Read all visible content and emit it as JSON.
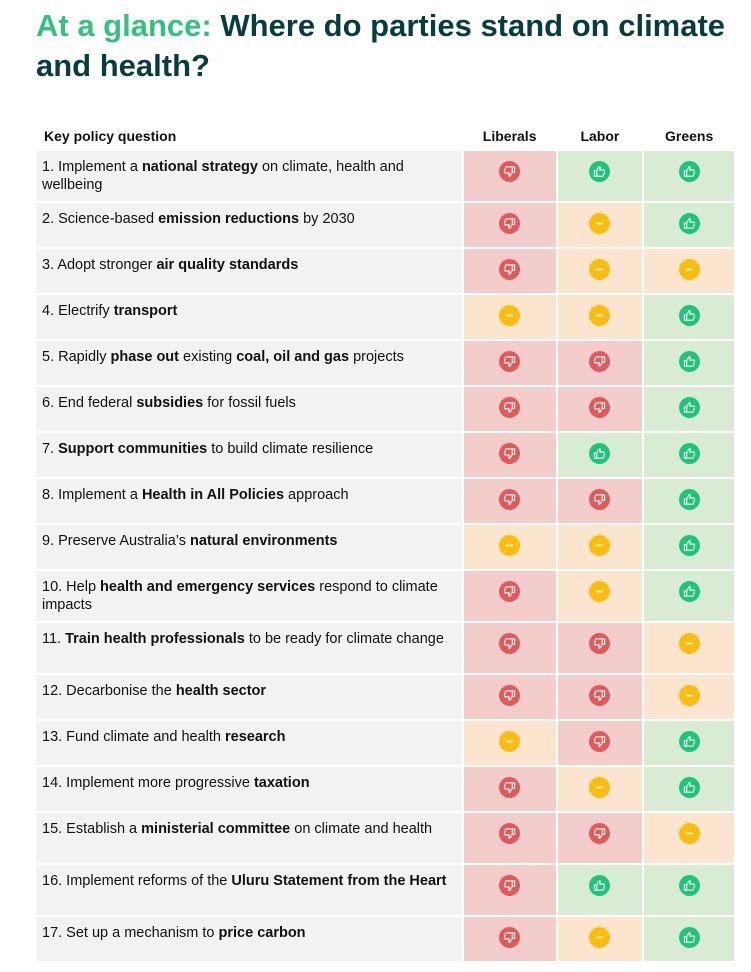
{
  "title": {
    "accent": "At a glance:",
    "main": " Where do parties stand on climate and health?"
  },
  "table": {
    "headers": {
      "question": "Key policy question",
      "parties": [
        "Liberals",
        "Labor",
        "Greens"
      ]
    },
    "legend_colors": {
      "against": "#e05a5a",
      "neutral": "#f8bd0f",
      "for": "#1dc47a"
    },
    "rows": [
      {
        "tall": true,
        "segments": [
          {
            "t": "1. Implement a "
          },
          {
            "t": "national strategy",
            "b": true
          },
          {
            "t": " on climate, health and wellbeing"
          }
        ],
        "positions": [
          "against",
          "for",
          "for"
        ]
      },
      {
        "segments": [
          {
            "t": "2. Science-based "
          },
          {
            "t": "emission reductions",
            "b": true
          },
          {
            "t": " by 2030"
          }
        ],
        "positions": [
          "against",
          "neutral",
          "for"
        ]
      },
      {
        "segments": [
          {
            "t": "3. Adopt stronger "
          },
          {
            "t": "air quality standards",
            "b": true
          }
        ],
        "positions": [
          "against",
          "neutral",
          "neutral"
        ]
      },
      {
        "segments": [
          {
            "t": "4. Electrify "
          },
          {
            "t": "transport",
            "b": true
          }
        ],
        "positions": [
          "neutral",
          "neutral",
          "for"
        ]
      },
      {
        "segments": [
          {
            "t": "5. Rapidly "
          },
          {
            "t": "phase out",
            "b": true
          },
          {
            "t": " existing "
          },
          {
            "t": "coal, oil and gas",
            "b": true
          },
          {
            "t": " projects"
          }
        ],
        "positions": [
          "against",
          "against",
          "for"
        ]
      },
      {
        "segments": [
          {
            "t": "6. End federal "
          },
          {
            "t": "subsidies",
            "b": true
          },
          {
            "t": " for fossil fuels"
          }
        ],
        "positions": [
          "against",
          "against",
          "for"
        ]
      },
      {
        "segments": [
          {
            "t": "7. "
          },
          {
            "t": "Support communities",
            "b": true
          },
          {
            "t": " to build climate resilience"
          }
        ],
        "positions": [
          "against",
          "for",
          "for"
        ]
      },
      {
        "segments": [
          {
            "t": "8. Implement a "
          },
          {
            "t": "Health in All Policies",
            "b": true
          },
          {
            "t": " approach"
          }
        ],
        "positions": [
          "against",
          "against",
          "for"
        ]
      },
      {
        "segments": [
          {
            "t": "9. Preserve Australia’s "
          },
          {
            "t": "natural environments",
            "b": true
          }
        ],
        "positions": [
          "neutral",
          "neutral",
          "for"
        ]
      },
      {
        "tall": true,
        "segments": [
          {
            "t": "10. Help "
          },
          {
            "t": "health and emergency services",
            "b": true
          },
          {
            "t": " respond to climate impacts"
          }
        ],
        "positions": [
          "against",
          "neutral",
          "for"
        ]
      },
      {
        "tall": true,
        "segments": [
          {
            "t": "11. "
          },
          {
            "t": "Train health professionals",
            "b": true
          },
          {
            "t": " to be ready for climate change"
          }
        ],
        "positions": [
          "against",
          "against",
          "neutral"
        ]
      },
      {
        "segments": [
          {
            "t": "12. Decarbonise the "
          },
          {
            "t": "health sector",
            "b": true
          }
        ],
        "positions": [
          "against",
          "against",
          "neutral"
        ]
      },
      {
        "segments": [
          {
            "t": "13. Fund climate and health "
          },
          {
            "t": "research",
            "b": true
          }
        ],
        "positions": [
          "neutral",
          "against",
          "for"
        ]
      },
      {
        "segments": [
          {
            "t": "14. Implement more progressive "
          },
          {
            "t": "taxation",
            "b": true
          }
        ],
        "positions": [
          "against",
          "neutral",
          "for"
        ]
      },
      {
        "tall": true,
        "segments": [
          {
            "t": "15. Establish a "
          },
          {
            "t": "ministerial committee",
            "b": true
          },
          {
            "t": " on climate and health"
          }
        ],
        "positions": [
          "against",
          "against",
          "neutral"
        ]
      },
      {
        "tall": true,
        "segments": [
          {
            "t": "16. Implement reforms of the "
          },
          {
            "t": "Uluru Statement from the Heart",
            "b": true
          }
        ],
        "positions": [
          "against",
          "for",
          "for"
        ]
      },
      {
        "segments": [
          {
            "t": "17. Set up a mechanism to "
          },
          {
            "t": "price carbon",
            "b": true
          }
        ],
        "positions": [
          "against",
          "neutral",
          "for"
        ]
      }
    ]
  }
}
